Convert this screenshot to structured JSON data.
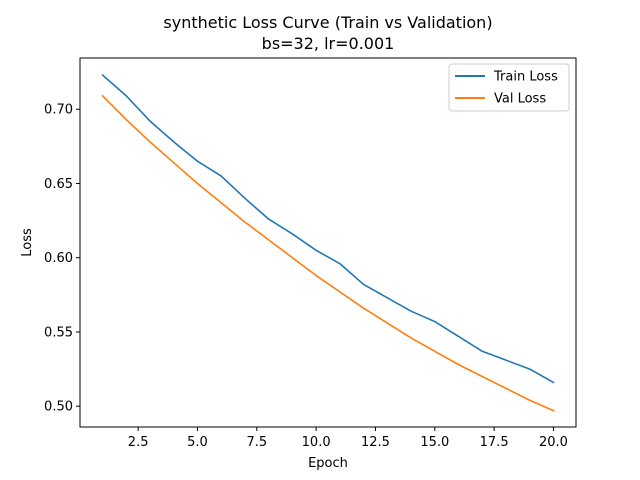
{
  "chart_data": {
    "type": "line",
    "title": "synthetic Loss Curve (Train vs Validation)",
    "subtitle": "bs=32, lr=0.001",
    "xlabel": "Epoch",
    "ylabel": "Loss",
    "xlim": [
      0.05,
      20.95
    ],
    "ylim": [
      0.486,
      0.7345
    ],
    "xticks": [
      2.5,
      5.0,
      7.5,
      10.0,
      12.5,
      15.0,
      17.5,
      20.0
    ],
    "xtick_labels": [
      "2.5",
      "5.0",
      "7.5",
      "10.0",
      "12.5",
      "15.0",
      "17.5",
      "20.0"
    ],
    "yticks": [
      0.5,
      0.55,
      0.6,
      0.65,
      0.7
    ],
    "ytick_labels": [
      "0.50",
      "0.55",
      "0.60",
      "0.65",
      "0.70"
    ],
    "grid": false,
    "legend_position": "top-right",
    "x": [
      1,
      2,
      3,
      4,
      5,
      6,
      7,
      8,
      9,
      10,
      11,
      12,
      13,
      14,
      15,
      16,
      17,
      18,
      19,
      20
    ],
    "series": [
      {
        "name": "Train Loss",
        "color": "#1f77b4",
        "values": [
          0.723,
          0.709,
          0.692,
          0.678,
          0.665,
          0.655,
          0.64,
          0.626,
          0.616,
          0.605,
          0.596,
          0.582,
          0.573,
          0.564,
          0.557,
          0.547,
          0.537,
          0.531,
          0.525,
          0.516
        ]
      },
      {
        "name": "Val Loss",
        "color": "#ff7f0e",
        "values": [
          0.709,
          0.693,
          0.678,
          0.664,
          0.65,
          0.637,
          0.624,
          0.612,
          0.6,
          0.588,
          0.577,
          0.566,
          0.556,
          0.546,
          0.537,
          0.528,
          0.52,
          0.512,
          0.504,
          0.497
        ]
      }
    ]
  }
}
